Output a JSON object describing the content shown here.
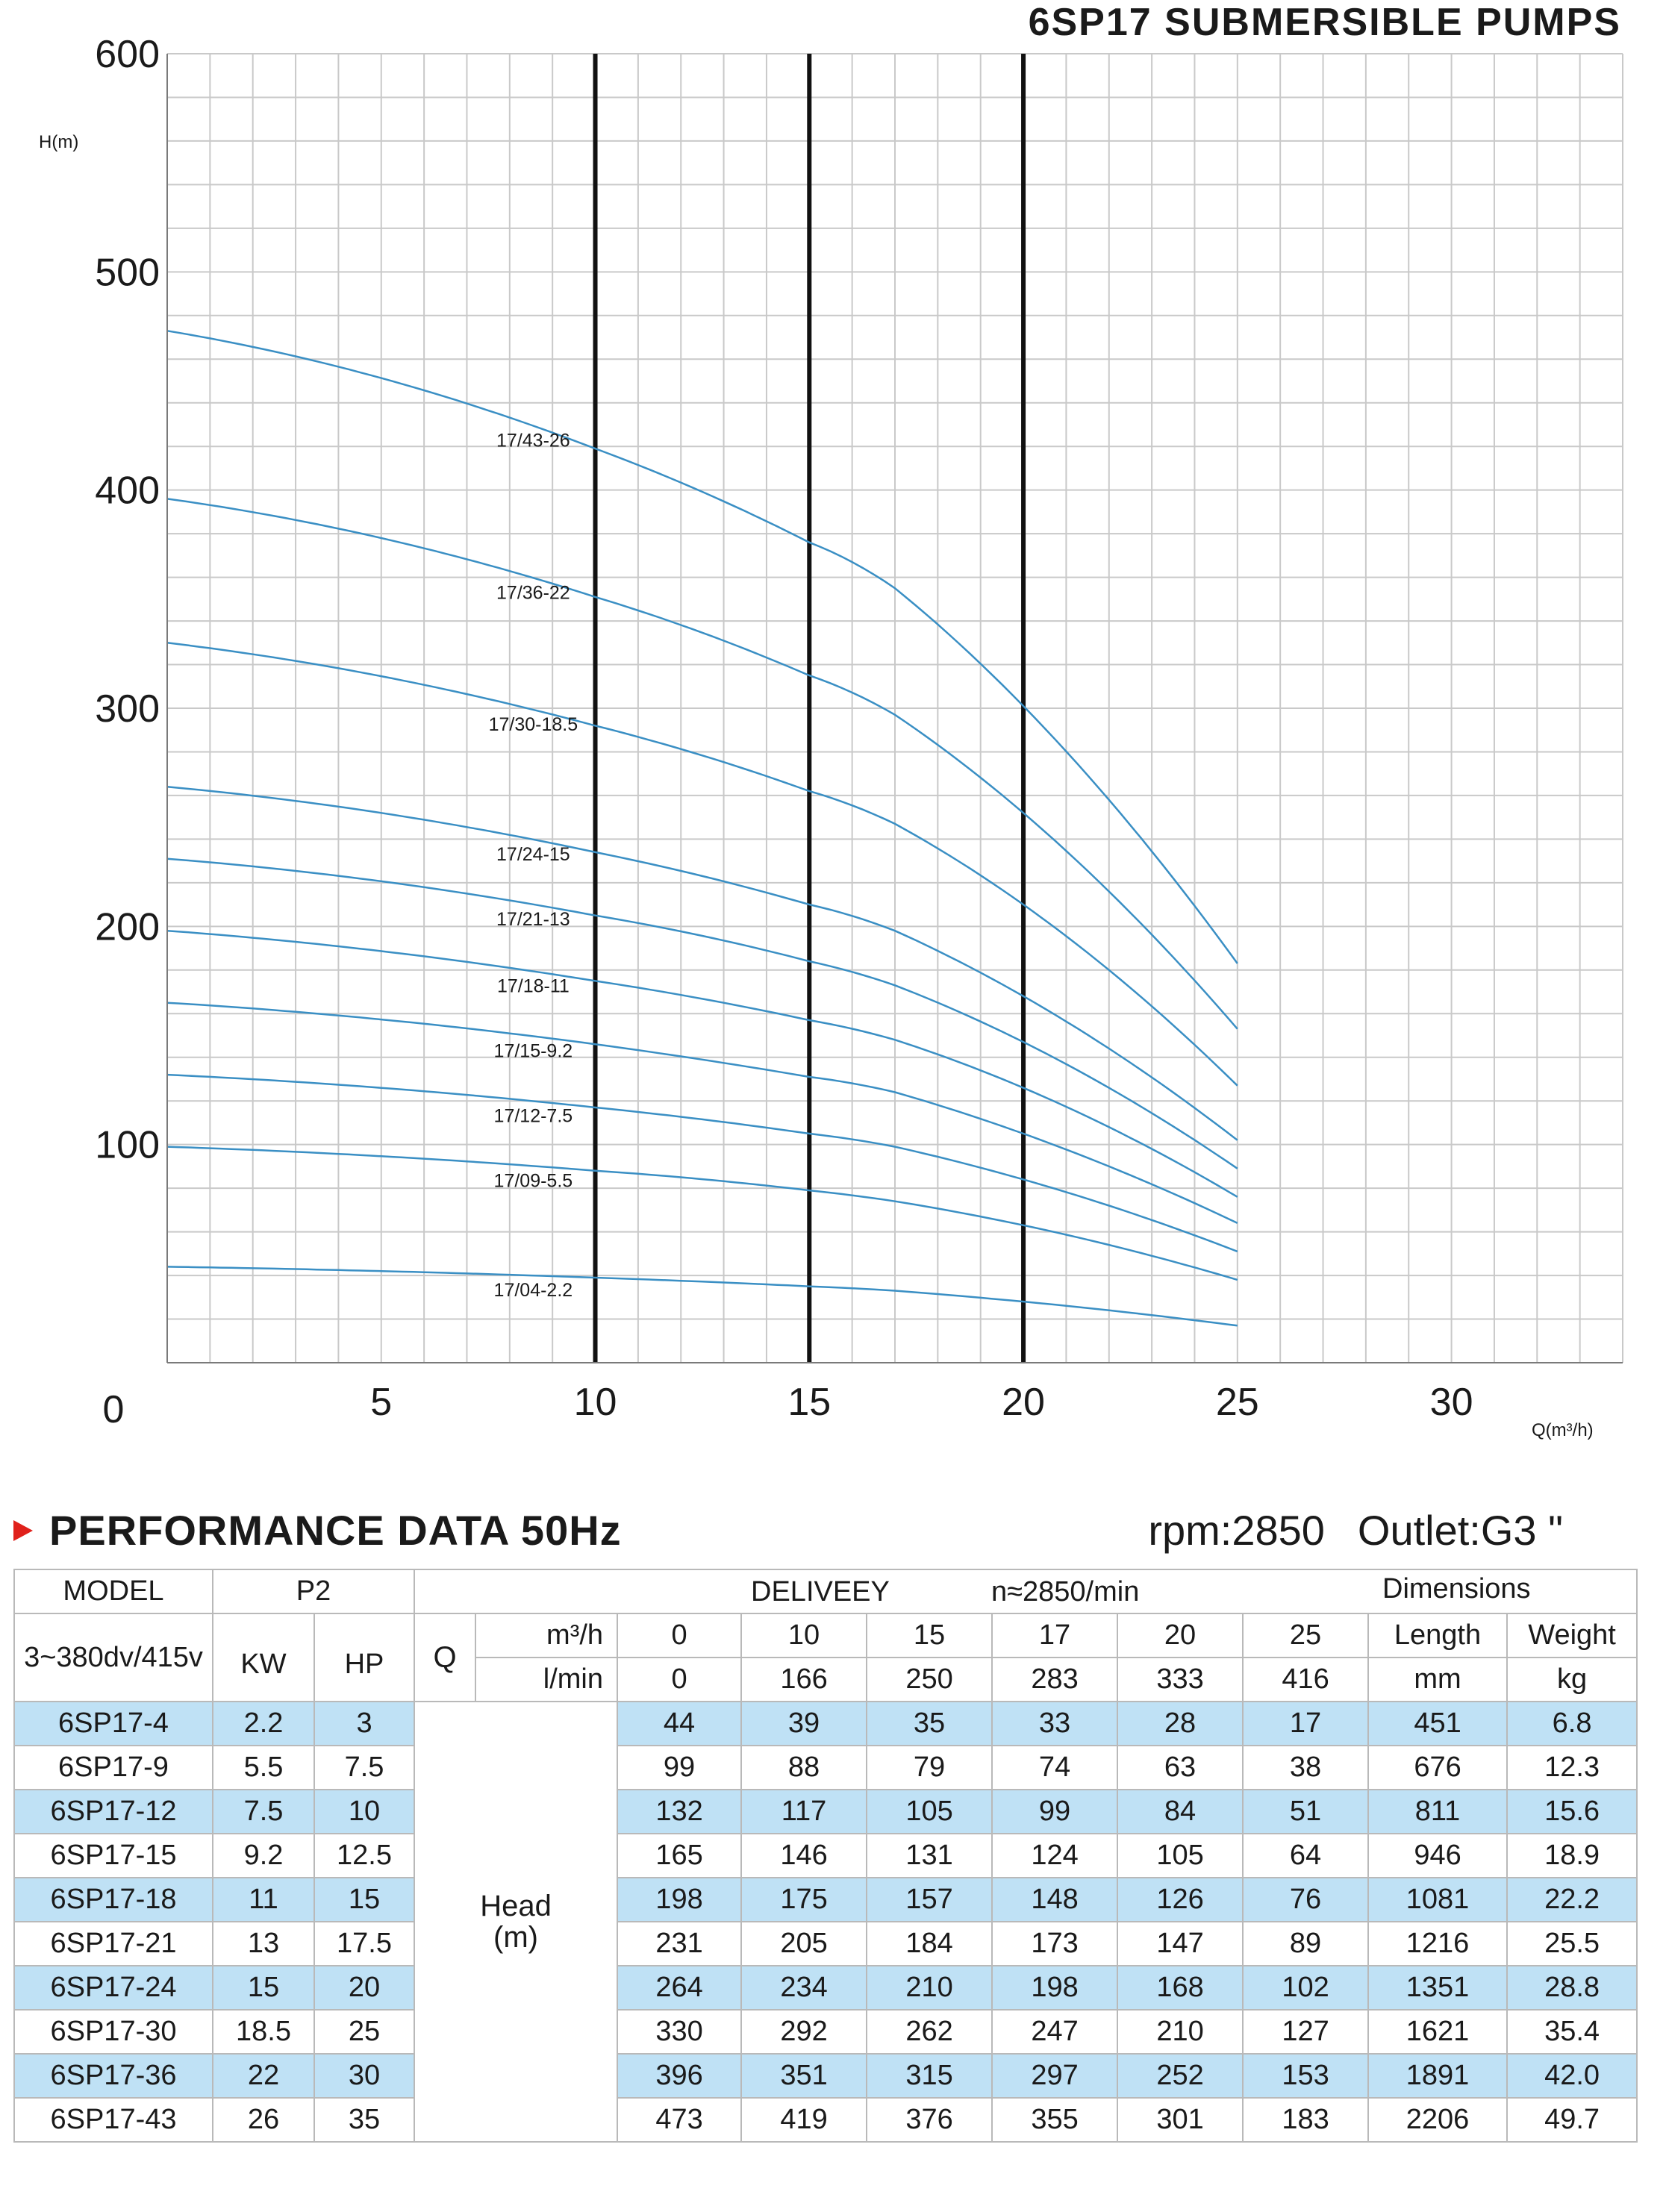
{
  "title": "6SP17 SUBMERSIBLE PUMPS",
  "chart_data": {
    "type": "line",
    "ylabel": "H(m)",
    "xlabel": "Q(m³/h)",
    "xlim": [
      0,
      34
    ],
    "ylim": [
      0,
      600
    ],
    "x_ticks": [
      0,
      5,
      10,
      15,
      20,
      25,
      30
    ],
    "y_ticks": [
      100,
      200,
      300,
      400,
      500,
      600
    ],
    "grid": true,
    "highlight_x": [
      10,
      15,
      20
    ],
    "line_color": "#3a8fc4",
    "series": [
      {
        "name": "17/43-26",
        "x": [
          0,
          10,
          15,
          17,
          20,
          25
        ],
        "values": [
          473,
          419,
          376,
          355,
          301,
          183
        ]
      },
      {
        "name": "17/36-22",
        "x": [
          0,
          10,
          15,
          17,
          20,
          25
        ],
        "values": [
          396,
          351,
          315,
          297,
          252,
          153
        ]
      },
      {
        "name": "17/30-18.5",
        "x": [
          0,
          10,
          15,
          17,
          20,
          25
        ],
        "values": [
          330,
          292,
          262,
          247,
          210,
          127
        ]
      },
      {
        "name": "17/24-15",
        "x": [
          0,
          10,
          15,
          17,
          20,
          25
        ],
        "values": [
          264,
          234,
          210,
          198,
          168,
          102
        ]
      },
      {
        "name": "17/21-13",
        "x": [
          0,
          10,
          15,
          17,
          20,
          25
        ],
        "values": [
          231,
          205,
          184,
          173,
          147,
          89
        ]
      },
      {
        "name": "17/18-11",
        "x": [
          0,
          10,
          15,
          17,
          20,
          25
        ],
        "values": [
          198,
          175,
          157,
          148,
          126,
          76
        ]
      },
      {
        "name": "17/15-9.2",
        "x": [
          0,
          10,
          15,
          17,
          20,
          25
        ],
        "values": [
          165,
          146,
          131,
          124,
          105,
          64
        ]
      },
      {
        "name": "17/12-7.5",
        "x": [
          0,
          10,
          15,
          17,
          20,
          25
        ],
        "values": [
          132,
          117,
          105,
          99,
          84,
          51
        ]
      },
      {
        "name": "17/09-5.5",
        "x": [
          0,
          10,
          15,
          17,
          20,
          25
        ],
        "values": [
          99,
          88,
          79,
          74,
          63,
          38
        ]
      },
      {
        "name": "17/04-2.2",
        "x": [
          0,
          10,
          15,
          17,
          20,
          25
        ],
        "values": [
          44,
          39,
          35,
          33,
          28,
          17
        ]
      }
    ]
  },
  "performance": {
    "heading": "PERFORMANCE DATA 50Hz",
    "rpm": "rpm:2850",
    "outlet": "Outlet:G3 \"",
    "accent": "#e0211b",
    "row_highlight": "#bfe1f5",
    "headers": {
      "model": "MODEL",
      "p2": "P2",
      "delivery": "DELIVEEY",
      "speed": "n≈2850/min",
      "dimensions": "Dimensions",
      "voltage": "3~380dv/415v",
      "kw": "KW",
      "hp": "HP",
      "q": "Q",
      "m3h": "m³/h",
      "lmin": "l/min",
      "length": "Length",
      "weight": "Weight",
      "mm": "mm",
      "kg": "kg",
      "head_line1": "Head",
      "head_line2": "(m)"
    },
    "flow_m3h": [
      "0",
      "10",
      "15",
      "17",
      "20",
      "25"
    ],
    "flow_lmin": [
      "0",
      "166",
      "250",
      "283",
      "333",
      "416"
    ],
    "rows": [
      {
        "model": "6SP17-4",
        "kw": "2.2",
        "hp": "3",
        "head": [
          "44",
          "39",
          "35",
          "33",
          "28",
          "17"
        ],
        "length": "451",
        "weight": "6.8"
      },
      {
        "model": "6SP17-9",
        "kw": "5.5",
        "hp": "7.5",
        "head": [
          "99",
          "88",
          "79",
          "74",
          "63",
          "38"
        ],
        "length": "676",
        "weight": "12.3"
      },
      {
        "model": "6SP17-12",
        "kw": "7.5",
        "hp": "10",
        "head": [
          "132",
          "117",
          "105",
          "99",
          "84",
          "51"
        ],
        "length": "811",
        "weight": "15.6"
      },
      {
        "model": "6SP17-15",
        "kw": "9.2",
        "hp": "12.5",
        "head": [
          "165",
          "146",
          "131",
          "124",
          "105",
          "64"
        ],
        "length": "946",
        "weight": "18.9"
      },
      {
        "model": "6SP17-18",
        "kw": "11",
        "hp": "15",
        "head": [
          "198",
          "175",
          "157",
          "148",
          "126",
          "76"
        ],
        "length": "1081",
        "weight": "22.2"
      },
      {
        "model": "6SP17-21",
        "kw": "13",
        "hp": "17.5",
        "head": [
          "231",
          "205",
          "184",
          "173",
          "147",
          "89"
        ],
        "length": "1216",
        "weight": "25.5"
      },
      {
        "model": "6SP17-24",
        "kw": "15",
        "hp": "20",
        "head": [
          "264",
          "234",
          "210",
          "198",
          "168",
          "102"
        ],
        "length": "1351",
        "weight": "28.8"
      },
      {
        "model": "6SP17-30",
        "kw": "18.5",
        "hp": "25",
        "head": [
          "330",
          "292",
          "262",
          "247",
          "210",
          "127"
        ],
        "length": "1621",
        "weight": "35.4"
      },
      {
        "model": "6SP17-36",
        "kw": "22",
        "hp": "30",
        "head": [
          "396",
          "351",
          "315",
          "297",
          "252",
          "153"
        ],
        "length": "1891",
        "weight": "42.0"
      },
      {
        "model": "6SP17-43",
        "kw": "26",
        "hp": "35",
        "head": [
          "473",
          "419",
          "376",
          "355",
          "301",
          "183"
        ],
        "length": "2206",
        "weight": "49.7"
      }
    ]
  }
}
